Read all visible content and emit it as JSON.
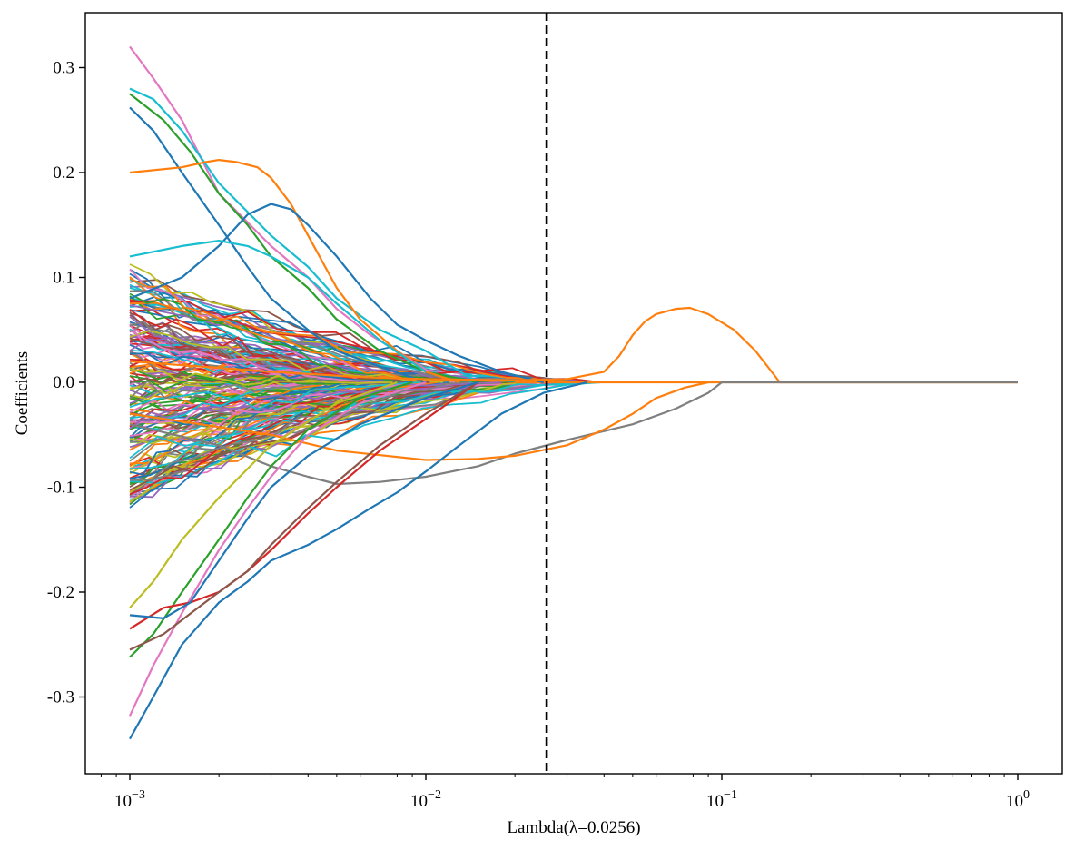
{
  "chart_data": {
    "type": "line",
    "title": "",
    "xlabel": "Lambda(λ=0.0256)",
    "ylabel": "Coefficients",
    "xscale": "log",
    "xlim": [
      0.001,
      1
    ],
    "ylim": [
      -0.35,
      0.35
    ],
    "grid": false,
    "legend": "none",
    "x_ticks": [
      {
        "base": "10",
        "exp": "−3",
        "value": 0.001
      },
      {
        "base": "10",
        "exp": "−2",
        "value": 0.01
      },
      {
        "base": "10",
        "exp": "−1",
        "value": 0.1
      },
      {
        "base": "10",
        "exp": "0",
        "value": 1
      }
    ],
    "y_ticks": [
      {
        "label": "-0.3",
        "value": -0.3
      },
      {
        "label": "-0.2",
        "value": -0.2
      },
      {
        "label": "-0.1",
        "value": -0.1
      },
      {
        "label": "0.0",
        "value": 0.0
      },
      {
        "label": "0.1",
        "value": 0.1
      },
      {
        "label": "0.2",
        "value": 0.2
      },
      {
        "label": "0.3",
        "value": 0.3
      }
    ],
    "reference_line": {
      "orientation": "vertical",
      "x": 0.0256,
      "style": "dashed",
      "color": "#000000"
    },
    "palette": [
      "#1f77b4",
      "#ff7f0e",
      "#2ca02c",
      "#d62728",
      "#9467bd",
      "#8c564b",
      "#e377c2",
      "#7f7f7f",
      "#bcbd22",
      "#17becf"
    ],
    "random_paths": {
      "count": 170,
      "lambda_range": [
        0.001,
        0.03
      ],
      "start_range": [
        -0.16,
        0.16
      ],
      "note": "bulk of coefficient paths, shrinking toward 0 as lambda grows"
    },
    "series": [
      {
        "name": "path-pink-top",
        "color": "#e377c2",
        "x": [
          0.001,
          0.0012,
          0.0015,
          0.002,
          0.003,
          0.004,
          0.005,
          0.0065,
          0.008,
          0.01,
          0.0125
        ],
        "y": [
          0.32,
          0.29,
          0.25,
          0.18,
          0.13,
          0.1,
          0.07,
          0.045,
          0.03,
          0.012,
          0.0
        ]
      },
      {
        "name": "path-cyan-top",
        "color": "#17becf",
        "x": [
          0.001,
          0.0012,
          0.0015,
          0.002,
          0.003,
          0.004,
          0.005,
          0.007,
          0.01,
          0.015
        ],
        "y": [
          0.28,
          0.27,
          0.24,
          0.19,
          0.14,
          0.11,
          0.08,
          0.05,
          0.03,
          0.0
        ]
      },
      {
        "name": "path-green-top",
        "color": "#2ca02c",
        "x": [
          0.001,
          0.0013,
          0.0016,
          0.002,
          0.0025,
          0.003,
          0.004,
          0.005,
          0.007,
          0.01,
          0.015
        ],
        "y": [
          0.275,
          0.25,
          0.22,
          0.18,
          0.15,
          0.12,
          0.09,
          0.06,
          0.03,
          0.01,
          0.0
        ]
      },
      {
        "name": "path-blue-top",
        "color": "#1f77b4",
        "x": [
          0.001,
          0.0012,
          0.0015,
          0.002,
          0.0025,
          0.003,
          0.004,
          0.005,
          0.007,
          0.01
        ],
        "y": [
          0.262,
          0.24,
          0.2,
          0.15,
          0.11,
          0.08,
          0.05,
          0.03,
          0.015,
          0.0
        ]
      },
      {
        "name": "path-orange-arch",
        "color": "#ff7f0e",
        "x": [
          0.001,
          0.0015,
          0.0018,
          0.002,
          0.0023,
          0.0027,
          0.003,
          0.0035,
          0.004,
          0.005,
          0.006,
          0.008,
          0.01,
          0.013
        ],
        "y": [
          0.2,
          0.205,
          0.21,
          0.212,
          0.21,
          0.205,
          0.195,
          0.17,
          0.14,
          0.09,
          0.06,
          0.03,
          0.01,
          0.0
        ]
      },
      {
        "name": "path-blue-mid-arch",
        "color": "#1f77b4",
        "x": [
          0.001,
          0.0015,
          0.002,
          0.0025,
          0.003,
          0.0035,
          0.004,
          0.005,
          0.0065,
          0.008,
          0.01,
          0.013,
          0.018,
          0.025
        ],
        "y": [
          0.08,
          0.1,
          0.13,
          0.16,
          0.17,
          0.165,
          0.15,
          0.12,
          0.08,
          0.055,
          0.04,
          0.025,
          0.01,
          0.0
        ]
      },
      {
        "name": "path-cyan-arch",
        "color": "#17becf",
        "x": [
          0.001,
          0.0015,
          0.002,
          0.0025,
          0.003,
          0.004,
          0.005,
          0.007,
          0.01
        ],
        "y": [
          0.12,
          0.13,
          0.135,
          0.13,
          0.12,
          0.1,
          0.075,
          0.04,
          0.01
        ]
      },
      {
        "name": "path-orange-late-hump",
        "color": "#ff7f0e",
        "x": [
          0.001,
          0.003,
          0.006,
          0.01,
          0.02,
          0.03,
          0.04,
          0.045,
          0.05,
          0.055,
          0.06,
          0.07,
          0.078,
          0.09,
          0.11,
          0.13,
          0.157,
          0.2,
          0.4,
          1.0
        ],
        "y": [
          0.02,
          0.01,
          0.005,
          0.003,
          0.002,
          0.003,
          0.01,
          0.025,
          0.045,
          0.058,
          0.065,
          0.07,
          0.071,
          0.065,
          0.05,
          0.03,
          0.0,
          0.0,
          0.0,
          0.0
        ]
      },
      {
        "name": "path-gray-bottom",
        "color": "#7f7f7f",
        "x": [
          0.001,
          0.002,
          0.003,
          0.004,
          0.005,
          0.007,
          0.01,
          0.015,
          0.02,
          0.03,
          0.05,
          0.07,
          0.09,
          0.1,
          0.2,
          0.4,
          1.0
        ],
        "y": [
          -0.04,
          -0.06,
          -0.08,
          -0.09,
          -0.097,
          -0.095,
          -0.09,
          -0.08,
          -0.068,
          -0.055,
          -0.04,
          -0.025,
          -0.01,
          0.0,
          0.0,
          0.0,
          0.0
        ]
      },
      {
        "name": "path-orange-neg",
        "color": "#ff7f0e",
        "x": [
          0.001,
          0.003,
          0.005,
          0.01,
          0.015,
          0.02,
          0.03,
          0.04,
          0.05,
          0.06,
          0.075,
          0.09
        ],
        "y": [
          -0.03,
          -0.05,
          -0.065,
          -0.074,
          -0.073,
          -0.07,
          -0.06,
          -0.045,
          -0.03,
          -0.015,
          -0.005,
          0.0
        ]
      },
      {
        "name": "path-blue-bottom",
        "color": "#1f77b4",
        "x": [
          0.001,
          0.0012,
          0.0015,
          0.002,
          0.0025,
          0.003,
          0.004,
          0.005,
          0.0065,
          0.008,
          0.01,
          0.013,
          0.018,
          0.025,
          0.035
        ],
        "y": [
          -0.34,
          -0.3,
          -0.25,
          -0.21,
          -0.19,
          -0.17,
          -0.155,
          -0.14,
          -0.12,
          -0.105,
          -0.085,
          -0.06,
          -0.03,
          -0.01,
          0.0
        ]
      },
      {
        "name": "path-pink-bottom",
        "color": "#e377c2",
        "x": [
          0.001,
          0.0012,
          0.0015,
          0.002,
          0.0025,
          0.003,
          0.004,
          0.006,
          0.01
        ],
        "y": [
          -0.318,
          -0.27,
          -0.22,
          -0.16,
          -0.12,
          -0.09,
          -0.05,
          -0.02,
          0.0
        ]
      },
      {
        "name": "path-green-bottom",
        "color": "#2ca02c",
        "x": [
          0.001,
          0.0012,
          0.0015,
          0.002,
          0.0025,
          0.003,
          0.004,
          0.006,
          0.009
        ],
        "y": [
          -0.262,
          -0.24,
          -0.2,
          -0.15,
          -0.11,
          -0.08,
          -0.045,
          -0.015,
          0.0
        ]
      },
      {
        "name": "path-red-bottom",
        "color": "#d62728",
        "x": [
          0.001,
          0.0013,
          0.0016,
          0.002,
          0.0025,
          0.003,
          0.004,
          0.005,
          0.007,
          0.01,
          0.015
        ],
        "y": [
          -0.235,
          -0.215,
          -0.21,
          -0.2,
          -0.18,
          -0.16,
          -0.125,
          -0.1,
          -0.065,
          -0.035,
          0.0
        ]
      },
      {
        "name": "path-brown-bottom",
        "color": "#8c564b",
        "x": [
          0.001,
          0.0013,
          0.0017,
          0.002,
          0.0025,
          0.003,
          0.004,
          0.005,
          0.007,
          0.01,
          0.015
        ],
        "y": [
          -0.255,
          -0.24,
          -0.215,
          -0.2,
          -0.18,
          -0.155,
          -0.12,
          -0.095,
          -0.06,
          -0.03,
          0.0
        ]
      },
      {
        "name": "path-olive-bottom",
        "color": "#bcbd22",
        "x": [
          0.001,
          0.0012,
          0.0015,
          0.002,
          0.003,
          0.005,
          0.008
        ],
        "y": [
          -0.215,
          -0.19,
          -0.15,
          -0.11,
          -0.06,
          -0.02,
          0.0
        ]
      },
      {
        "name": "path-blue-mid-neg",
        "color": "#1f77b4",
        "x": [
          0.001,
          0.0013,
          0.0016,
          0.002,
          0.0025,
          0.003,
          0.004,
          0.006,
          0.01,
          0.015
        ],
        "y": [
          -0.222,
          -0.225,
          -0.21,
          -0.17,
          -0.13,
          -0.1,
          -0.07,
          -0.04,
          -0.015,
          0.0
        ]
      }
    ]
  }
}
